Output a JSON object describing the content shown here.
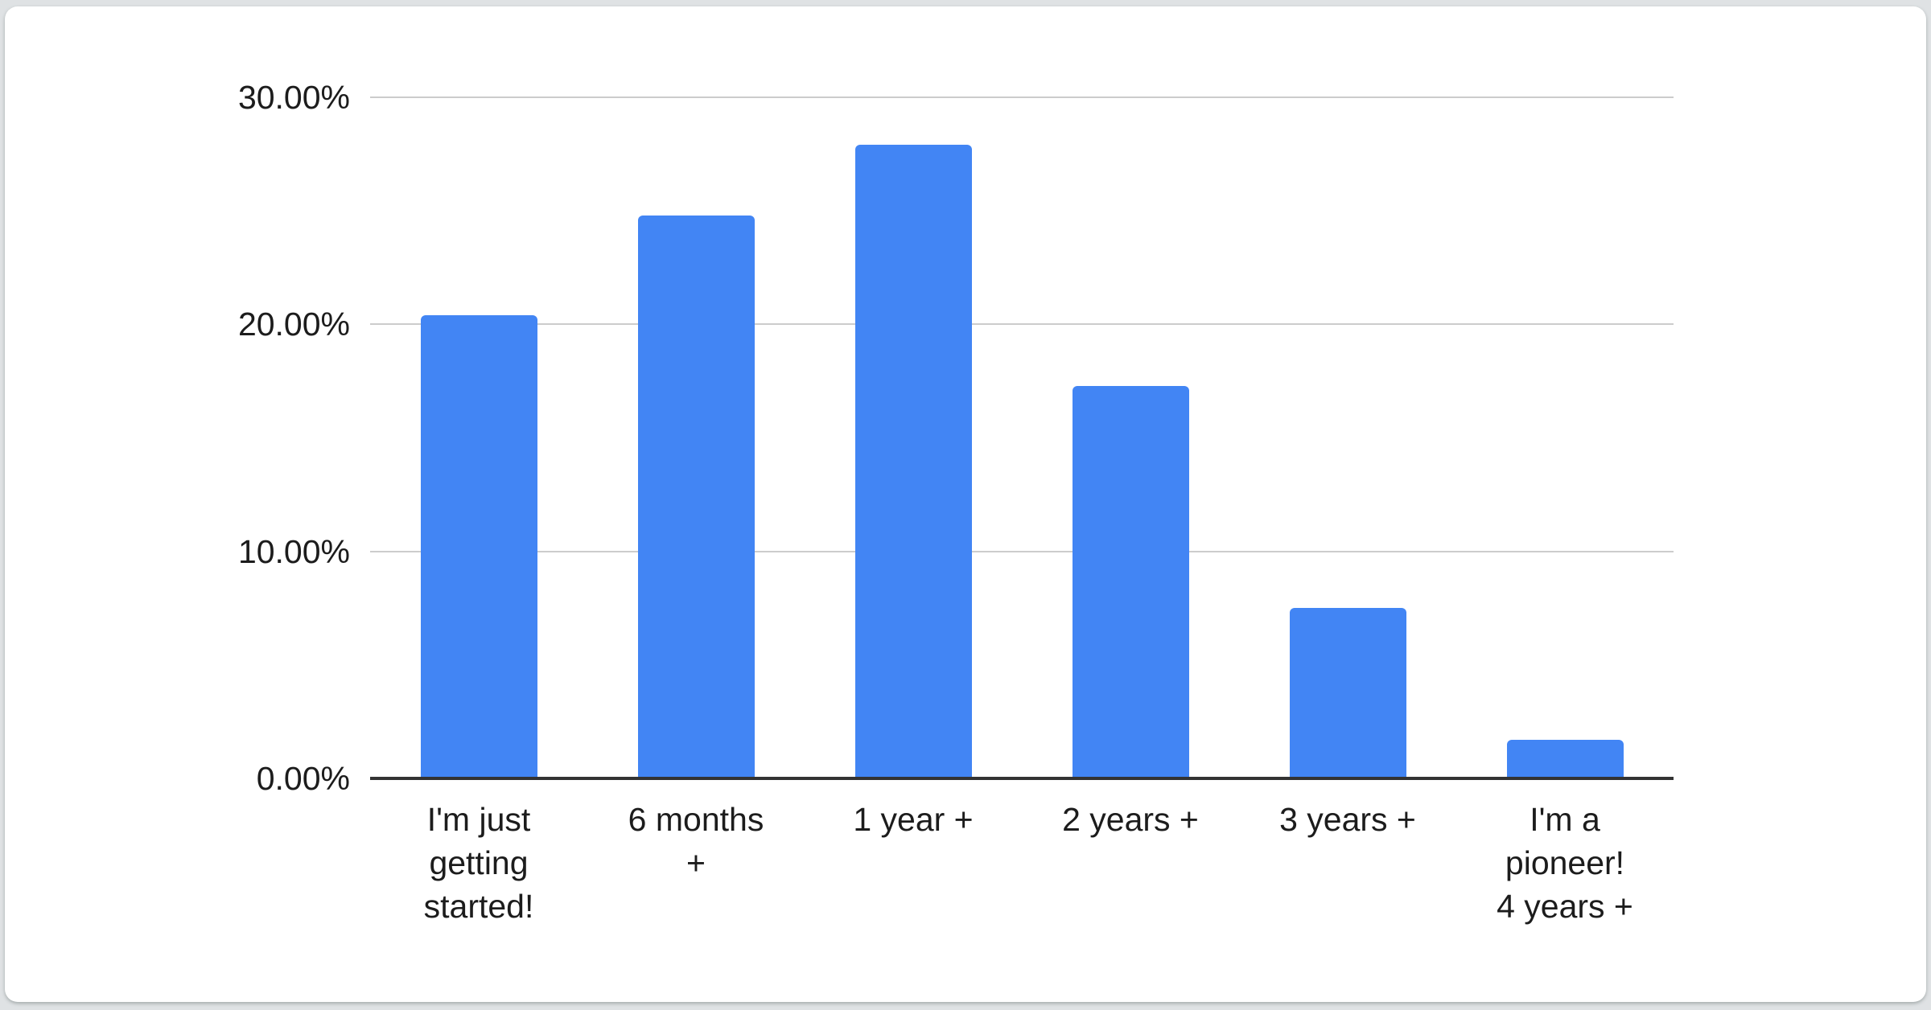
{
  "page": {
    "background_color": "#dfe2e4",
    "card_color": "#ffffff"
  },
  "chart_data": {
    "type": "bar",
    "categories": [
      "I'm just getting started!",
      "6 months +",
      "1 year +",
      "2 years +",
      "3 years +",
      "I'm a pioneer! 4 years +"
    ],
    "values": [
      20.4,
      24.8,
      27.9,
      17.3,
      7.5,
      1.7
    ],
    "unit": "%",
    "xtick_labels": [
      "I'm just\ngetting\nstarted!",
      "6 months\n+",
      "1 year +",
      "2 years +",
      "3 years +",
      "I'm a\npioneer!\n4 years +"
    ],
    "ytick_labels": [
      "30.00%",
      "20.00%",
      "10.00%",
      "0.00%"
    ],
    "yticks": [
      30,
      20,
      10,
      0
    ],
    "ylim": [
      0,
      30
    ],
    "grid": true,
    "legend": "none",
    "bar_color": "#4285f4",
    "gridline_color": "#cccccc",
    "axis_line_color": "#333333",
    "label_color": "#1c1c1c"
  }
}
